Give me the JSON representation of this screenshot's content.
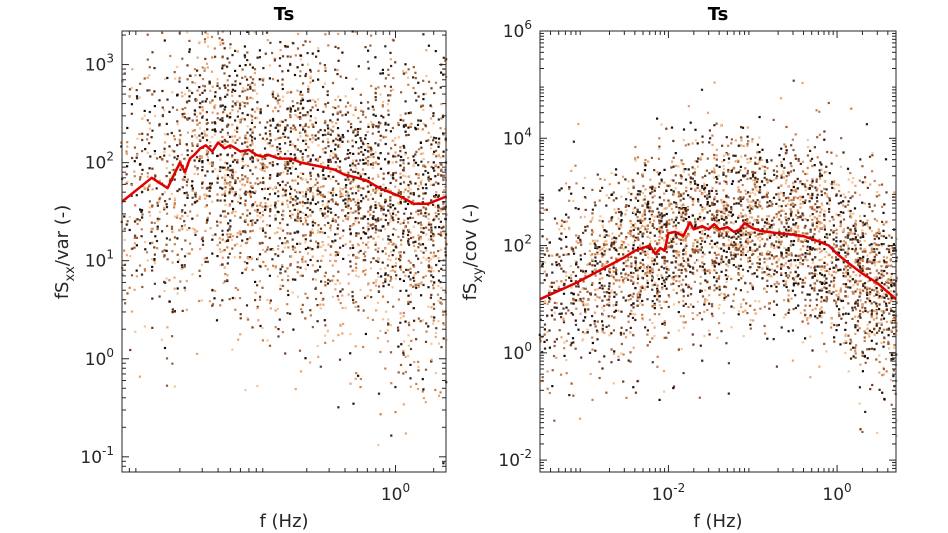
{
  "chart_data": [
    {
      "type": "scatter",
      "title": "Ts",
      "xlabel": "f (Hz)",
      "ylabel": {
        "base": "fS",
        "sub": "xx",
        "rest": "/var (-)"
      },
      "x_scale": "log",
      "y_scale": "log",
      "xlim": [
        0.007,
        2.5
      ],
      "ylim": [
        0.07,
        2200
      ],
      "x_ticks": [
        {
          "base": "10",
          "exp": "0",
          "value": 1
        }
      ],
      "y_ticks": [
        {
          "base": "10",
          "exp": "-1",
          "value": 0.1
        },
        {
          "base": "10",
          "exp": "0",
          "value": 1
        },
        {
          "base": "10",
          "exp": "1",
          "value": 10
        },
        {
          "base": "10",
          "exp": "2",
          "value": 100
        },
        {
          "base": "10",
          "exp": "3",
          "value": 1000
        }
      ],
      "grid": false,
      "scatter_colors": [
        "#1a0e08",
        "#3d2214",
        "#6b3a1f",
        "#9a5a32",
        "#c8814e",
        "#e8a374",
        "#f7c496"
      ],
      "line": {
        "color": "#e00000",
        "x": [
          0.007,
          0.012,
          0.016,
          0.02,
          0.022,
          0.024,
          0.026,
          0.029,
          0.032,
          0.036,
          0.04,
          0.045,
          0.05,
          0.055,
          0.06,
          0.07,
          0.08,
          0.09,
          0.1,
          0.12,
          0.15,
          0.18,
          0.22,
          0.27,
          0.33,
          0.4,
          0.5,
          0.6,
          0.75,
          0.9,
          1.1,
          1.4,
          1.8,
          2.5
        ],
        "y": [
          40,
          70,
          55,
          100,
          80,
          110,
          120,
          140,
          150,
          130,
          160,
          140,
          150,
          140,
          130,
          135,
          120,
          115,
          120,
          110,
          110,
          100,
          95,
          90,
          85,
          75,
          70,
          65,
          55,
          50,
          45,
          38,
          38,
          45
        ]
      }
    },
    {
      "type": "scatter",
      "title": "Ts",
      "xlabel": "f (Hz)",
      "ylabel": {
        "base": "fS",
        "sub": "xy",
        "rest": "/cov (-)"
      },
      "x_scale": "log",
      "y_scale": "log",
      "xlim": [
        0.0003,
        5
      ],
      "ylim": [
        0.006,
        1000000
      ],
      "x_ticks": [
        {
          "base": "10",
          "exp": "-2",
          "value": 0.01
        },
        {
          "base": "10",
          "exp": "0",
          "value": 1
        }
      ],
      "y_ticks": [
        {
          "base": "10",
          "exp": "-2",
          "value": 0.01
        },
        {
          "base": "10",
          "exp": "0",
          "value": 1
        },
        {
          "base": "10",
          "exp": "2",
          "value": 100
        },
        {
          "base": "10",
          "exp": "4",
          "value": 10000
        },
        {
          "base": "10",
          "exp": "6",
          "value": 1000000
        }
      ],
      "grid": false,
      "scatter_colors": [
        "#1a0e08",
        "#3d2214",
        "#6b3a1f",
        "#9a5a32",
        "#c8814e",
        "#e8a374",
        "#f7c496"
      ],
      "line": {
        "color": "#e00000",
        "x": [
          0.0003,
          0.0008,
          0.003,
          0.004,
          0.006,
          0.007,
          0.008,
          0.009,
          0.01,
          0.012,
          0.015,
          0.018,
          0.02,
          0.025,
          0.03,
          0.035,
          0.04,
          0.05,
          0.06,
          0.07,
          0.08,
          0.1,
          0.12,
          0.15,
          0.2,
          0.3,
          0.4,
          0.6,
          0.8,
          1.0,
          1.3,
          2.0,
          3.0,
          5.0
        ],
        "y": [
          10,
          20,
          60,
          80,
          100,
          70,
          90,
          80,
          170,
          180,
          150,
          270,
          200,
          230,
          200,
          250,
          200,
          220,
          180,
          200,
          260,
          210,
          190,
          180,
          170,
          160,
          150,
          120,
          100,
          70,
          50,
          30,
          20,
          10
        ]
      }
    }
  ]
}
